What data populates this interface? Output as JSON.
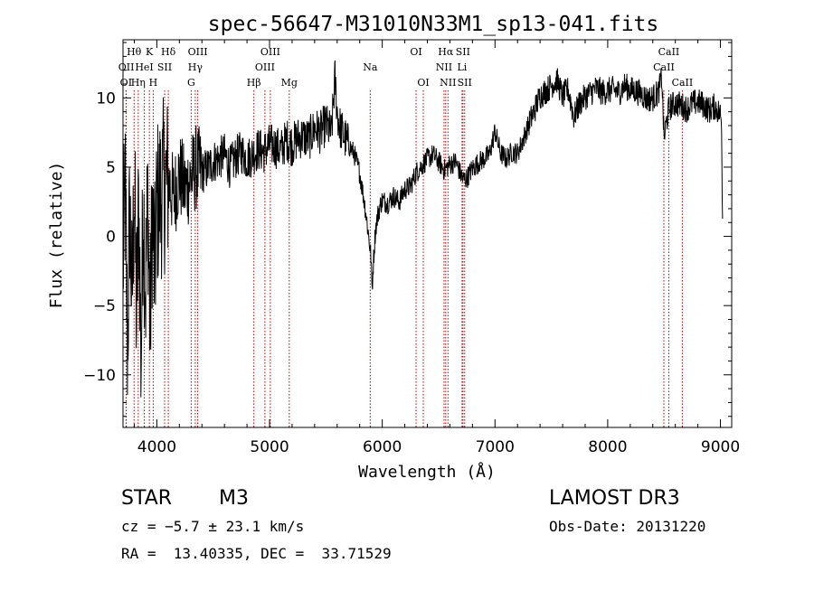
{
  "chart_data": {
    "type": "line",
    "title": "spec-56647-M31010N33M1_sp13-041.fits",
    "xlabel": "Wavelength (Å)",
    "ylabel": "Flux (relative)",
    "xlim": [
      3700,
      9100
    ],
    "ylim": [
      -13.8,
      14.2
    ],
    "xticks": [
      4000,
      5000,
      6000,
      7000,
      8000,
      9000
    ],
    "yticks": [
      -10,
      -5,
      0,
      5,
      10
    ],
    "xtick_labels": [
      "4000",
      "5000",
      "6000",
      "7000",
      "8000",
      "9000"
    ],
    "ytick_labels": [
      "−10",
      "−5",
      "0",
      "5",
      "10"
    ],
    "line_color": "#000000",
    "marker_color": "#c00000",
    "series": [
      {
        "name": "flux",
        "x": [
          3700,
          3720,
          3740,
          3760,
          3780,
          3800,
          3820,
          3840,
          3860,
          3880,
          3900,
          3920,
          3940,
          3960,
          3980,
          4000,
          4050,
          4100,
          4150,
          4200,
          4250,
          4300,
          4350,
          4400,
          4450,
          4500,
          4550,
          4600,
          4650,
          4700,
          4750,
          4800,
          4850,
          4900,
          4950,
          5000,
          5050,
          5100,
          5150,
          5200,
          5250,
          5300,
          5350,
          5400,
          5450,
          5500,
          5550,
          5580,
          5600,
          5620,
          5650,
          5700,
          5750,
          5800,
          5850,
          5880,
          5900,
          5910,
          5920,
          5940,
          5960,
          5980,
          6000,
          6050,
          6100,
          6150,
          6200,
          6250,
          6300,
          6350,
          6400,
          6450,
          6500,
          6550,
          6600,
          6650,
          6700,
          6720,
          6750,
          6800,
          6850,
          6900,
          6950,
          7000,
          7050,
          7100,
          7150,
          7200,
          7250,
          7300,
          7350,
          7400,
          7450,
          7500,
          7550,
          7600,
          7650,
          7700,
          7750,
          7800,
          7850,
          7900,
          7950,
          8000,
          8050,
          8100,
          8150,
          8200,
          8250,
          8300,
          8350,
          8400,
          8450,
          8480,
          8500,
          8520,
          8540,
          8560,
          8600,
          8650,
          8700,
          8750,
          8800,
          8850,
          8900,
          8950,
          9000,
          9010,
          9020
        ],
        "y": [
          -2,
          3,
          -8,
          2,
          -5,
          4,
          -6,
          2.5,
          -9,
          3,
          -4,
          3,
          -7,
          2,
          -3,
          2.2,
          3.5,
          4,
          2.8,
          4.5,
          3.4,
          4.2,
          5,
          4.6,
          4.9,
          5.4,
          5.6,
          5.9,
          5,
          5.7,
          6.1,
          5.6,
          5.9,
          6.3,
          6.1,
          6.6,
          6.5,
          6.2,
          7,
          6.6,
          7.1,
          7.2,
          7,
          7.8,
          7.5,
          8.1,
          7.4,
          11.5,
          9,
          8,
          7.4,
          6.6,
          6,
          4.6,
          2,
          0,
          -1.5,
          -4,
          -2,
          0.5,
          1.5,
          2.2,
          2.6,
          2.4,
          2.9,
          2.5,
          3.4,
          3.6,
          4.6,
          5.1,
          5.6,
          5.9,
          5.4,
          4.8,
          5.2,
          5.4,
          4.4,
          4.1,
          4.2,
          4.9,
          5.3,
          5.6,
          5.9,
          7.6,
          6,
          5.6,
          6.1,
          6,
          7,
          8.1,
          9.1,
          10.2,
          10.5,
          10.9,
          11.3,
          10.1,
          10.6,
          8.6,
          9.6,
          10.1,
          10.4,
          10.7,
          10.4,
          10.5,
          10.6,
          10.4,
          10.9,
          10.6,
          10.5,
          10.3,
          9.9,
          10,
          10.4,
          11.5,
          7,
          8.2,
          9.1,
          9.4,
          9.6,
          9.5,
          9.2,
          9.6,
          9.7,
          9.5,
          9.1,
          9.4,
          8.8,
          8,
          0.5
        ]
      }
    ],
    "line_markers": [
      {
        "name": "OI",
        "wavelength": 3727,
        "row": 2
      },
      {
        "name": "OII",
        "wavelength": 3729,
        "row": 1
      },
      {
        "name": "Hθ",
        "wavelength": 3798,
        "row": 0
      },
      {
        "name": "Hη",
        "wavelength": 3835,
        "row": 2
      },
      {
        "name": "HeI",
        "wavelength": 3889,
        "row": 1
      },
      {
        "name": "K",
        "wavelength": 3934,
        "row": 0
      },
      {
        "name": "H",
        "wavelength": 3968,
        "row": 2
      },
      {
        "name": "SII",
        "wavelength": 4069,
        "row": 1
      },
      {
        "name": "Hδ",
        "wavelength": 4102,
        "row": 0
      },
      {
        "name": "G",
        "wavelength": 4305,
        "row": 2
      },
      {
        "name": "Hγ",
        "wavelength": 4341,
        "row": 1
      },
      {
        "name": "OIII",
        "wavelength": 4363,
        "row": 0
      },
      {
        "name": "Hβ",
        "wavelength": 4861,
        "row": 2
      },
      {
        "name": "OIII",
        "wavelength": 4959,
        "row": 1
      },
      {
        "name": "OIII",
        "wavelength": 5007,
        "row": 0
      },
      {
        "name": "Mg",
        "wavelength": 5175,
        "row": 2
      },
      {
        "name": "Na",
        "wavelength": 5893,
        "row": 1
      },
      {
        "name": "OI",
        "wavelength": 6300,
        "row": 0
      },
      {
        "name": "OI",
        "wavelength": 6364,
        "row": 2
      },
      {
        "name": "NII",
        "wavelength": 6548,
        "row": 1
      },
      {
        "name": "Hα",
        "wavelength": 6563,
        "row": 0
      },
      {
        "name": "NII",
        "wavelength": 6583,
        "row": 2
      },
      {
        "name": "SII",
        "wavelength": 6716,
        "row": 0
      },
      {
        "name": "Li",
        "wavelength": 6708,
        "row": 1
      },
      {
        "name": "SII",
        "wavelength": 6731,
        "row": 2
      },
      {
        "name": "CaII",
        "wavelength": 8498,
        "row": 1
      },
      {
        "name": "CaII",
        "wavelength": 8542,
        "row": 0
      },
      {
        "name": "CaII",
        "wavelength": 8662,
        "row": 2
      }
    ]
  },
  "info": {
    "object_class": "STAR",
    "subclass": "M3",
    "redshift": "cz = −5.7 ± 23.1 km/s",
    "coordinates": "RA =  13.40335, DEC =  33.71529",
    "survey": "LAMOST DR3",
    "obs_date": "Obs-Date: 20131220"
  }
}
